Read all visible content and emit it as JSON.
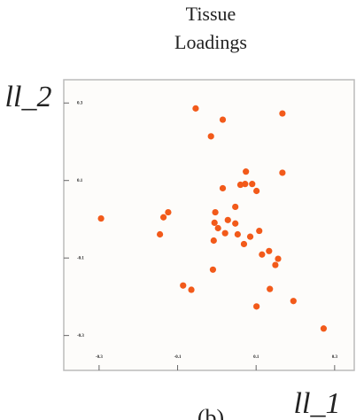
{
  "chart_data": {
    "type": "scatter",
    "title": "Tissue Loadings",
    "xlabel": "ll_1",
    "ylabel": "ll_2",
    "caption": "(b)",
    "color": "#f25a1a",
    "xlim": [
      -0.39,
      0.35
    ],
    "ylim": [
      -0.39,
      0.36
    ],
    "xticks": [
      -0.3,
      -0.1,
      0.1,
      0.3
    ],
    "yticks": [
      -0.3,
      -0.1,
      0.1,
      0.3
    ],
    "x": [
      -0.054,
      0.167,
      0.015,
      -0.015,
      0.074,
      0.167,
      0.06,
      0.072,
      0.09,
      0.015,
      0.101,
      0.047,
      -0.004,
      -0.124,
      -0.136,
      -0.295,
      0.028,
      -0.006,
      0.047,
      0.003,
      0.108,
      0.021,
      0.085,
      0.053,
      -0.008,
      -0.145,
      0.069,
      0.133,
      0.115,
      0.156,
      0.149,
      -0.01,
      -0.086,
      -0.065,
      0.135,
      0.195,
      0.101,
      0.272
    ],
    "values": [
      0.286,
      0.273,
      0.257,
      0.214,
      0.123,
      0.12,
      0.089,
      0.091,
      0.091,
      0.08,
      0.073,
      0.032,
      0.018,
      0.018,
      0.005,
      0.002,
      -0.002,
      -0.009,
      -0.011,
      -0.023,
      -0.03,
      -0.036,
      -0.045,
      -0.039,
      -0.055,
      -0.039,
      -0.064,
      -0.082,
      -0.091,
      -0.102,
      -0.118,
      -0.13,
      -0.171,
      -0.182,
      -0.18,
      -0.211,
      -0.225,
      -0.282
    ]
  }
}
